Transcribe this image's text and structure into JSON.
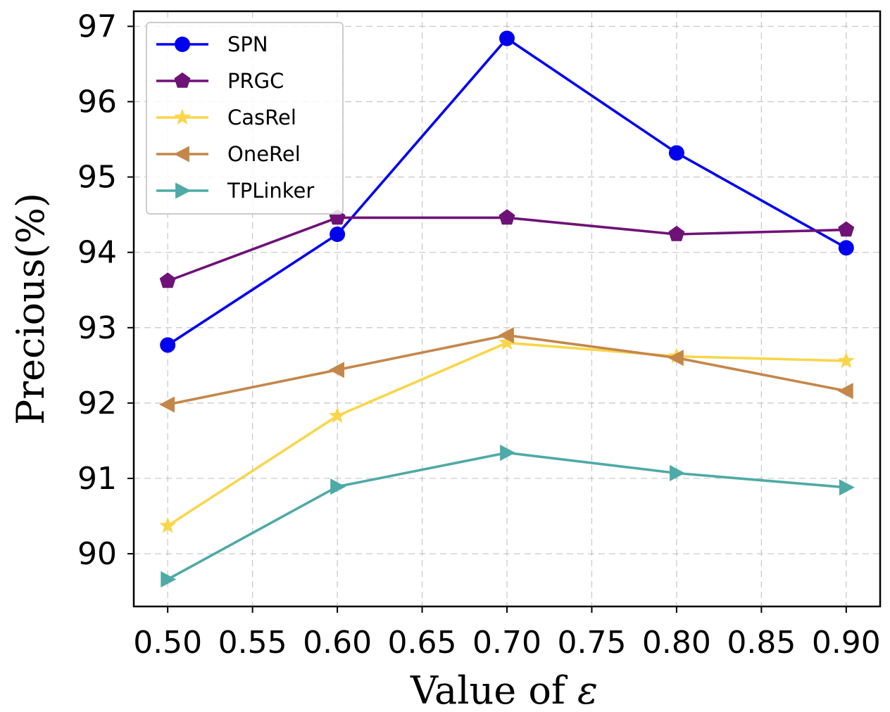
{
  "chart_data": {
    "type": "line",
    "title": "",
    "xlabel": "Value of ",
    "xlabel_symbol": "ε",
    "ylabel": "Precious(%)",
    "x": [
      0.5,
      0.6,
      0.7,
      0.8,
      0.9
    ],
    "xlim": [
      0.48,
      0.92
    ],
    "ylim": [
      89.3,
      97.2
    ],
    "xticks": [
      0.5,
      0.55,
      0.6,
      0.65,
      0.7,
      0.75,
      0.8,
      0.85,
      0.9
    ],
    "xtick_labels": [
      "0.50",
      "0.55",
      "0.60",
      "0.65",
      "0.70",
      "0.75",
      "0.80",
      "0.85",
      "0.90"
    ],
    "yticks": [
      90,
      91,
      92,
      93,
      94,
      95,
      96,
      97
    ],
    "ytick_labels": [
      "90",
      "91",
      "92",
      "93",
      "94",
      "95",
      "96",
      "97"
    ],
    "grid": true,
    "legend_position": "top-left",
    "series": [
      {
        "name": "SPN",
        "values": [
          92.77,
          94.24,
          96.84,
          95.32,
          94.06
        ],
        "color": "#0000ee",
        "marker": "circle"
      },
      {
        "name": "PRGC",
        "values": [
          93.62,
          94.46,
          94.46,
          94.24,
          94.3
        ],
        "color": "#6f1277",
        "marker": "pentagon"
      },
      {
        "name": "CasRel",
        "values": [
          90.37,
          91.83,
          92.8,
          92.62,
          92.56
        ],
        "color": "#f9d64a",
        "marker": "star"
      },
      {
        "name": "OneRel",
        "values": [
          91.98,
          92.44,
          92.9,
          92.6,
          92.16
        ],
        "color": "#c4874a",
        "marker": "triangle-left"
      },
      {
        "name": "TPLinker",
        "values": [
          89.66,
          90.89,
          91.34,
          91.07,
          90.88
        ],
        "color": "#4eaaa6",
        "marker": "triangle-right"
      }
    ]
  }
}
